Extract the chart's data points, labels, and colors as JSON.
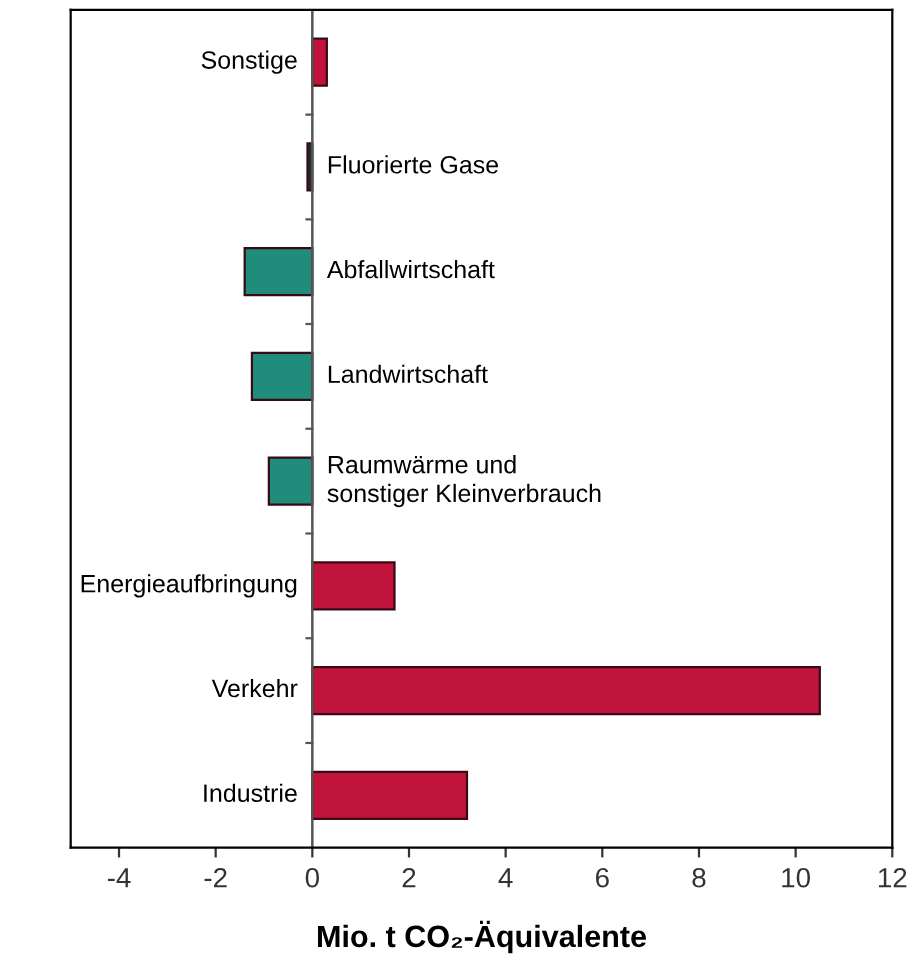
{
  "chart_data": {
    "type": "bar",
    "orientation": "horizontal",
    "xlabel": "Mio. t CO₂-Äquivalente",
    "categories": [
      "Sonstige",
      "Fluorierte Gase",
      "Abfallwirtschaft",
      "Landwirtschaft",
      "Raumwärme und\nsonstiger Kleinverbrauch",
      "Energieaufbringung",
      "Verkehr",
      "Industrie"
    ],
    "values": [
      0.3,
      -0.1,
      -1.4,
      -1.25,
      -0.9,
      1.7,
      10.5,
      3.2
    ],
    "colors": [
      "#c0143c",
      "#1e2e2c",
      "#1f8c7c",
      "#1f8c7c",
      "#1f8c7c",
      "#c0143c",
      "#c0143c",
      "#c0143c"
    ],
    "xlim": [
      -5,
      12
    ],
    "xticks": [
      -4,
      -2,
      0,
      2,
      4,
      6,
      8,
      10,
      12
    ],
    "grid": false,
    "legend": false
  }
}
